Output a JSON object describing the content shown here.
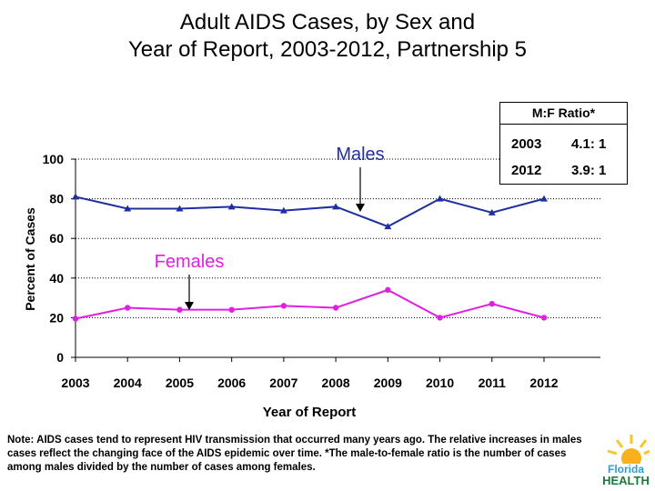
{
  "title_lines": [
    "Adult AIDS Cases, by Sex and",
    "Year of Report, 2003-2012, Partnership 5"
  ],
  "chart_data": {
    "type": "line",
    "title": "Adult AIDS Cases, by Sex and Year of Report, 2003-2012, Partnership 5",
    "xlabel": "Year of Report",
    "ylabel": "Percent of Cases",
    "ylim": [
      0,
      100
    ],
    "yticks": [
      0,
      20,
      40,
      60,
      80,
      100
    ],
    "categories": [
      "2003",
      "2004",
      "2005",
      "2006",
      "2007",
      "2008",
      "2009",
      "2010",
      "2011",
      "2012"
    ],
    "series": [
      {
        "name": "Males",
        "color": "#1f2fa0",
        "marker": "triangle",
        "values": [
          81,
          75,
          75,
          76,
          74,
          76,
          66,
          80,
          73,
          80
        ]
      },
      {
        "name": "Females",
        "color": "#e020e0",
        "marker": "circle",
        "values": [
          19.5,
          25,
          24,
          24,
          26,
          25,
          34,
          20,
          27,
          20
        ]
      }
    ],
    "annotations": [
      {
        "text": "Males",
        "color": "#1f2fa0",
        "points_to_year": "2008"
      },
      {
        "text": "Females",
        "color": "#e020e0",
        "points_to_year": "2005"
      }
    ]
  },
  "ratio_box": {
    "header": "M:F Ratio*",
    "rows": [
      {
        "year": "2003",
        "ratio": "4.1: 1"
      },
      {
        "year": "2012",
        "ratio": "3.9: 1"
      }
    ]
  },
  "note": "Note: AIDS cases tend to represent HIV transmission that occurred many years ago.  The relative increases in males cases reflect the changing face of the AIDS epidemic over time. *The male-to-female ratio is the number of cases among males divided by the number of cases among females.",
  "logo": {
    "line1": "Florida",
    "line2": "HEALTH",
    "icon": "sun-icon"
  }
}
